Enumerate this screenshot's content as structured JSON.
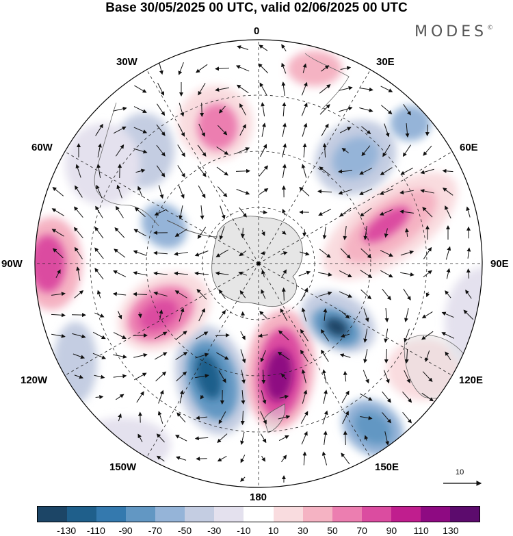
{
  "title": "Base 30/05/2025 00 UTC, valid 02/06/2025 00 UTC",
  "brand": {
    "name": "MODES",
    "mark": "©"
  },
  "longitude_labels": [
    "0",
    "30E",
    "60E",
    "90E",
    "120E",
    "150E",
    "180",
    "150W",
    "120W",
    "90W",
    "60W",
    "30W"
  ],
  "reference_vector": {
    "label": "10"
  },
  "colorbar": {
    "colors": [
      "#1c4566",
      "#1f5f8b",
      "#3479ae",
      "#6297c3",
      "#95b4d8",
      "#c4cde2",
      "#e4e1ee",
      "#ffffff",
      "#f9dcdf",
      "#f5b3c3",
      "#ec7eb0",
      "#db4ca0",
      "#c01e8e",
      "#8e0a82",
      "#5c0b6d"
    ],
    "ticks": [
      "-130",
      "-110",
      "-90",
      "-70",
      "-50",
      "-30",
      "-10",
      "10",
      "30",
      "50",
      "70",
      "90",
      "110",
      "130"
    ]
  }
}
